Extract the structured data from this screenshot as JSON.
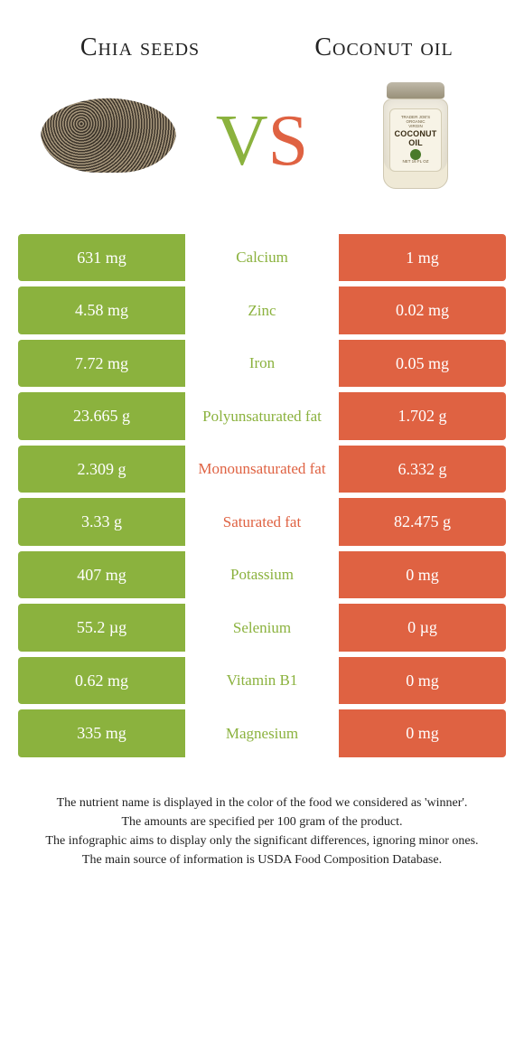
{
  "left_title": "Chia seeds",
  "right_title": "Coconut oil",
  "vs_left_char": "V",
  "vs_right_char": "S",
  "colors": {
    "left": "#8bb23e",
    "right": "#df6242",
    "text": "#222222",
    "bg": "#ffffff"
  },
  "jar": {
    "line1": "TRADER JOE'S",
    "line2": "ORGANIC",
    "line3": "VIRGIN",
    "big1": "COCONUT",
    "big2": "OIL",
    "net": "NET 16 FL OZ"
  },
  "rows": [
    {
      "left": "631 mg",
      "label": "Calcium",
      "right": "1 mg",
      "winner": "left"
    },
    {
      "left": "4.58 mg",
      "label": "Zinc",
      "right": "0.02 mg",
      "winner": "left"
    },
    {
      "left": "7.72 mg",
      "label": "Iron",
      "right": "0.05 mg",
      "winner": "left"
    },
    {
      "left": "23.665 g",
      "label": "Polyunsaturated fat",
      "right": "1.702 g",
      "winner": "left"
    },
    {
      "left": "2.309 g",
      "label": "Monounsaturated fat",
      "right": "6.332 g",
      "winner": "right"
    },
    {
      "left": "3.33 g",
      "label": "Saturated fat",
      "right": "82.475 g",
      "winner": "right"
    },
    {
      "left": "407 mg",
      "label": "Potassium",
      "right": "0 mg",
      "winner": "left"
    },
    {
      "left": "55.2 µg",
      "label": "Selenium",
      "right": "0 µg",
      "winner": "left"
    },
    {
      "left": "0.62 mg",
      "label": "Vitamin B1",
      "right": "0 mg",
      "winner": "left"
    },
    {
      "left": "335 mg",
      "label": "Magnesium",
      "right": "0 mg",
      "winner": "left"
    }
  ],
  "footnotes": [
    "The nutrient name is displayed in the color of the food we considered as 'winner'.",
    "The amounts are specified per 100 gram of the product.",
    "The infographic aims to display only the significant differences, ignoring minor ones.",
    "The main source of information is USDA Food Composition Database."
  ]
}
